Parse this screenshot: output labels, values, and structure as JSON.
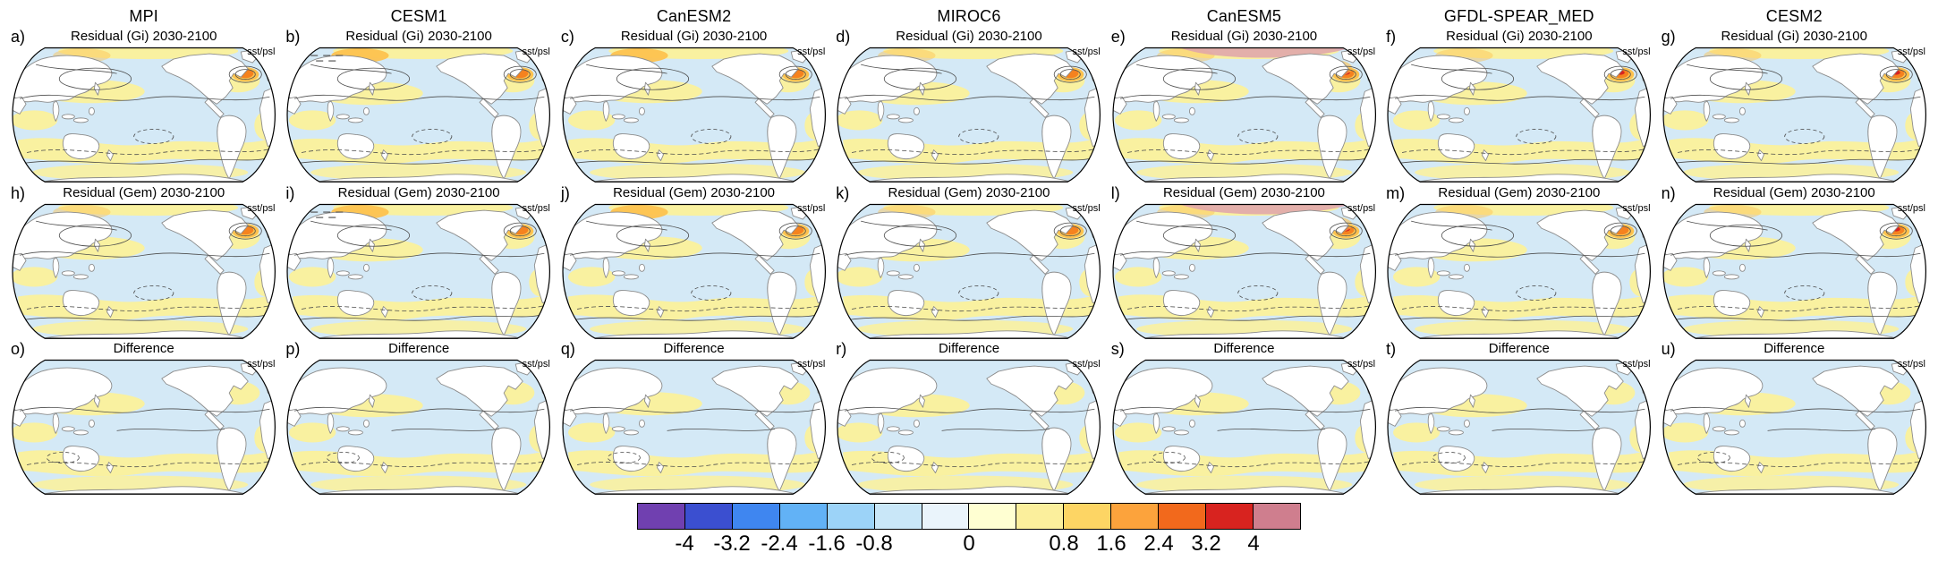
{
  "figure": {
    "models": [
      "MPI",
      "CESM1",
      "CanESM2",
      "MIROC6",
      "CanESM5",
      "GFDL-SPEAR_MED",
      "CESM2"
    ],
    "corner_label": "sst/psl",
    "rows": [
      {
        "kind": "gi",
        "title": "Residual (Gi) 2030-2100"
      },
      {
        "kind": "gem",
        "title": "Residual (Gem) 2030-2100"
      },
      {
        "kind": "diff",
        "title": "Difference"
      }
    ],
    "panel_labels": [
      "a)",
      "b)",
      "c)",
      "d)",
      "e)",
      "f)",
      "g)",
      "h)",
      "i)",
      "j)",
      "k)",
      "l)",
      "m)",
      "n)",
      "o)",
      "p)",
      "q)",
      "r)",
      "s)",
      "t)",
      "u)"
    ]
  },
  "colorbar": {
    "ticks": [
      "-4",
      "-3.2",
      "-2.4",
      "-1.6",
      "-0.8",
      "0",
      "0.8",
      "1.6",
      "2.4",
      "3.2",
      "4"
    ],
    "tick_cell_boundaries": [
      1,
      2,
      3,
      4,
      5,
      7,
      9,
      10,
      11,
      12,
      13
    ],
    "cell_count": 14,
    "colors": [
      "#7040b0",
      "#3b4fd0",
      "#3f86f0",
      "#62b2f6",
      "#9cd3f8",
      "#c9e7f8",
      "#eaf4fb",
      "#ffffd2",
      "#fbef9c",
      "#fdd564",
      "#fca33c",
      "#f2691c",
      "#d8231f",
      "#cf7e8e"
    ]
  },
  "chart_data": {
    "type": "heatmap",
    "subtype": "global_map_panel_grid",
    "grid": {
      "rows": 3,
      "cols": 7
    },
    "column_models": [
      "MPI",
      "CESM1",
      "CanESM2",
      "MIROC6",
      "CanESM5",
      "GFDL-SPEAR_MED",
      "CESM2"
    ],
    "row_titles": [
      "Residual (Gi) 2030-2100",
      "Residual (Gem) 2030-2100",
      "Difference"
    ],
    "panel_labels": [
      "a)",
      "b)",
      "c)",
      "d)",
      "e)",
      "f)",
      "g)",
      "h)",
      "i)",
      "j)",
      "k)",
      "l)",
      "m)",
      "n)",
      "o)",
      "p)",
      "q)",
      "r)",
      "s)",
      "t)",
      "u)"
    ],
    "per_panel_annotation": "sst/psl",
    "colorbar": {
      "orientation": "horizontal",
      "tick_values": [
        -4,
        -3.2,
        -2.4,
        -1.6,
        -0.8,
        0,
        0.8,
        1.6,
        2.4,
        3.2,
        4
      ],
      "colors": [
        "#7040b0",
        "#3b4fd0",
        "#3f86f0",
        "#62b2f6",
        "#9cd3f8",
        "#c9e7f8",
        "#eaf4fb",
        "#ffffd2",
        "#fbef9c",
        "#fdd564",
        "#fca33c",
        "#f2691c",
        "#d8231f",
        "#cf7e8e"
      ]
    },
    "notes": "21 Pacific-centered global maps (Robinson-style outline) with pale blue/yellow shaded anomalies, gray contour overlays, warm orange/red spots in the subpolar North Atlantic and Arctic in rows 1-2; all panels share one diverging colorbar."
  }
}
